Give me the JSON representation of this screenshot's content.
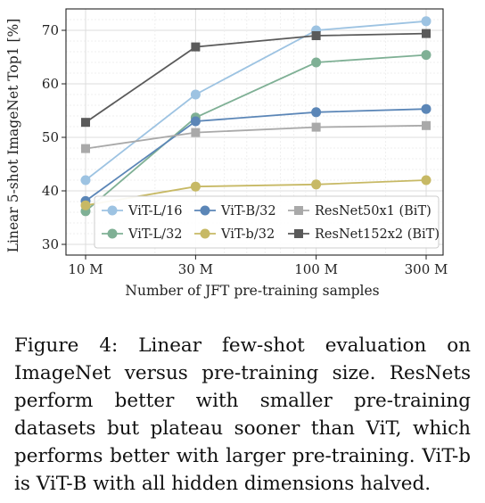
{
  "chart_data": {
    "type": "line",
    "title": "",
    "xlabel": "Number of JFT pre-training samples",
    "ylabel": "Linear 5-shot ImageNet Top1 [%]",
    "x_scale": "log",
    "categories": [
      "10 M",
      "30 M",
      "100 M",
      "300 M"
    ],
    "x": [
      10,
      30,
      100,
      300
    ],
    "yticks": [
      30,
      40,
      50,
      60,
      70
    ],
    "ylim": [
      28,
      74
    ],
    "grid": true,
    "legend_position": "bottom-right",
    "series": [
      {
        "name": "ViT-L/16",
        "color": "#9dc3e2",
        "marker": "circle",
        "values": [
          42.0,
          58.0,
          70.0,
          71.7
        ]
      },
      {
        "name": "ViT-L/32",
        "color": "#7fb095",
        "marker": "circle",
        "values": [
          36.2,
          53.7,
          64.0,
          65.4
        ]
      },
      {
        "name": "ViT-B/32",
        "color": "#5b86b7",
        "marker": "circle",
        "values": [
          38.1,
          53.0,
          54.7,
          55.3
        ]
      },
      {
        "name": "ViT-b/32",
        "color": "#c7b965",
        "marker": "circle",
        "values": [
          37.3,
          40.8,
          41.2,
          42.0
        ]
      },
      {
        "name": "ResNet50x1 (BiT)",
        "color": "#a9a9a9",
        "marker": "square",
        "values": [
          47.9,
          50.9,
          51.9,
          52.2
        ]
      },
      {
        "name": "ResNet152x2 (BiT)",
        "color": "#5a5a5a",
        "marker": "square",
        "values": [
          52.8,
          66.9,
          69.0,
          69.4
        ]
      }
    ]
  },
  "caption": {
    "text": "Figure 4: Linear few-shot evaluation on ImageNet versus pre-training size. ResNets perform better with smaller pre-training datasets but plateau sooner than ViT, which performs better with larger pre-training. ViT-b is ViT-B with all hidden dimensions halved."
  }
}
